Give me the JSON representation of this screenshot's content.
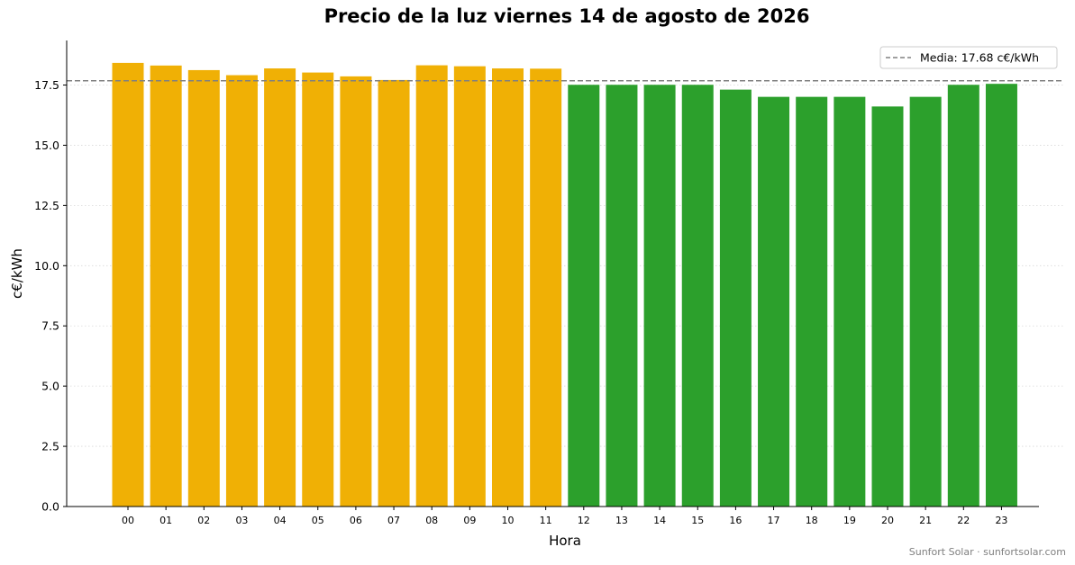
{
  "chart_data": {
    "type": "bar",
    "title": "Precio de la luz viernes 14 de agosto de 2026",
    "xlabel": "Hora",
    "ylabel": "c€/kWh",
    "categories": [
      "00",
      "01",
      "02",
      "03",
      "04",
      "05",
      "06",
      "07",
      "08",
      "09",
      "10",
      "11",
      "12",
      "13",
      "14",
      "15",
      "16",
      "17",
      "18",
      "19",
      "20",
      "21",
      "22",
      "23"
    ],
    "values": [
      18.42,
      18.31,
      18.12,
      17.91,
      18.19,
      18.02,
      17.86,
      17.71,
      18.32,
      18.28,
      18.19,
      18.18,
      17.51,
      17.51,
      17.51,
      17.51,
      17.31,
      17.01,
      17.01,
      17.01,
      16.61,
      17.01,
      17.51,
      17.55
    ],
    "ylim": [
      0,
      19.35
    ],
    "yticks": [
      0.0,
      2.5,
      5.0,
      7.5,
      10.0,
      12.5,
      15.0,
      17.5
    ],
    "ytick_labels": [
      "0.0",
      "2.5",
      "5.0",
      "7.5",
      "10.0",
      "12.5",
      "15.0",
      "17.5"
    ],
    "grid": "horizontal dotted",
    "colors": {
      "above_mean": "#f0b005",
      "below_mean": "#2ca02c",
      "mean_line": "#808080",
      "credit": "#808080"
    },
    "mean": {
      "value": 17.68,
      "label": "Media: 17.68 c€/kWh",
      "style": "dashed"
    },
    "legend": {
      "placement": "top-right",
      "entries": [
        "Media: 17.68 c€/kWh"
      ]
    },
    "credit": "Sunfort Solar · sunfortsolar.com"
  }
}
